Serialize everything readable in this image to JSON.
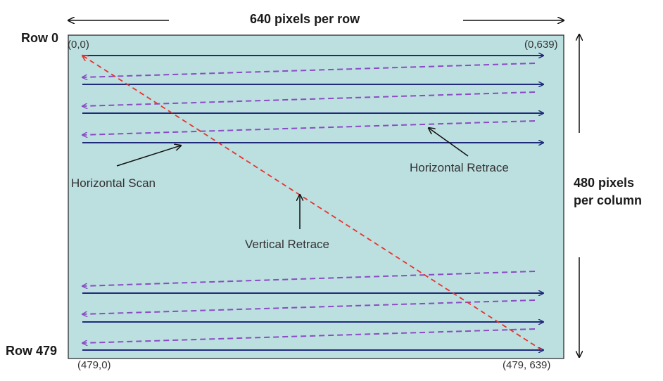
{
  "diagram": {
    "top_label": "640 pixels per row",
    "side_label_line1": "480 pixels",
    "side_label_line2": "per column",
    "row_first": "Row 0",
    "row_last": "Row 479",
    "coord_top_left": "(0,0)",
    "coord_top_right": "(0,639)",
    "coord_bottom_left": "(479,0)",
    "coord_bottom_right": "(479, 639)",
    "label_horizontal_scan": "Horizontal Scan",
    "label_horizontal_retrace": "Horizontal Retrace",
    "label_vertical_retrace": "Vertical Retrace"
  },
  "colors": {
    "screen_fill": "#bcdfe0",
    "scan_line": "#1f2a7a",
    "retrace_line": "#8a4cc4",
    "vertical_retrace": "#e8322e",
    "pointer": "#111111"
  }
}
